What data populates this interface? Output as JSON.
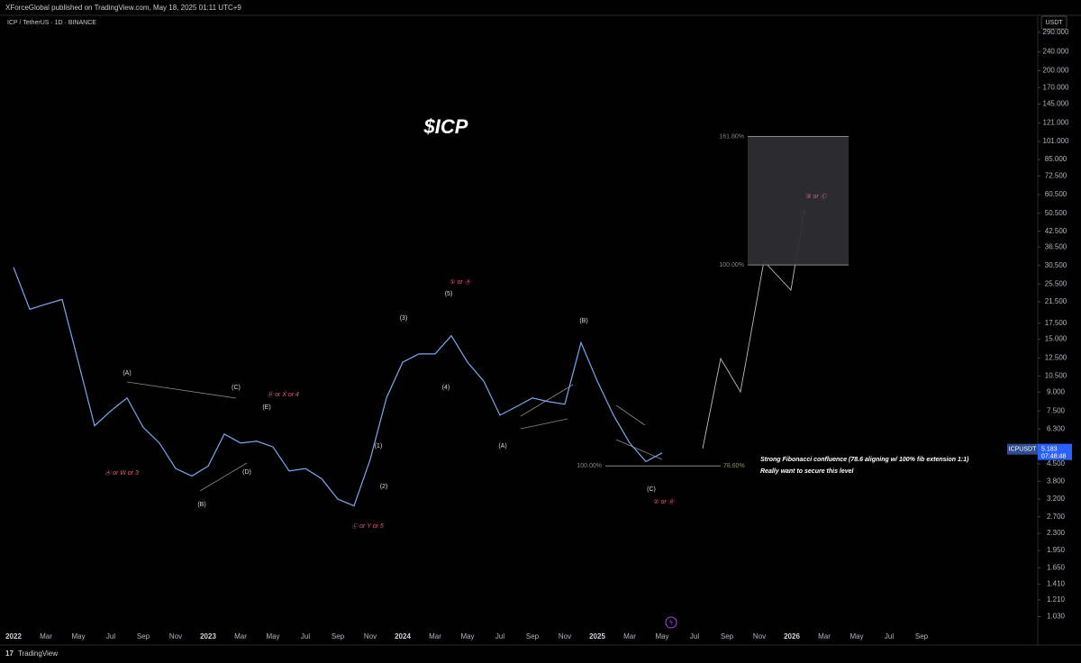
{
  "header": {
    "publisher": "XForceGlobal published on TradingView.com, May 18, 2025 01:11 UTC+9",
    "symbol": "ICP / TetherUS · 1D · BINANCE"
  },
  "footer": {
    "brand": "TradingView"
  },
  "chart_data": {
    "type": "line",
    "title": "$ICP",
    "categories": [
      "2022",
      null,
      "Mar",
      null,
      "May",
      null,
      "Jul",
      null,
      "Sep",
      null,
      "Nov",
      null,
      "2023",
      null,
      "Mar",
      null,
      "May",
      null,
      "Jul",
      null,
      "Sep",
      null,
      "Nov",
      null,
      "2024",
      null,
      "Mar",
      null,
      "May",
      null,
      "Jul",
      null,
      "Sep",
      null,
      "Nov",
      null,
      "2025",
      null,
      "Mar",
      null,
      "May",
      null,
      "Jul",
      null,
      "Sep",
      null,
      "Nov",
      null,
      "2026",
      null,
      "Mar",
      null,
      "May",
      null,
      "Jul",
      null,
      "Sep"
    ],
    "series": [
      {
        "name": "ICPUSDT",
        "color": "#7ea6f0",
        "values": [
          30,
          20,
          21,
          22,
          12,
          6.5,
          7.5,
          8.5,
          6.4,
          5.5,
          4.3,
          4,
          4.4,
          6,
          5.5,
          5.6,
          5.3,
          4.2,
          4.3,
          3.9,
          3.2,
          3.0,
          4.7,
          8.5,
          12,
          13,
          13,
          15.5,
          12,
          10,
          7.2,
          7.8,
          8.5,
          8.2,
          8,
          14.5,
          10,
          7.2,
          5.5,
          4.6,
          5.0,
          null,
          null,
          null,
          null,
          null,
          null,
          null,
          null,
          null,
          null,
          null,
          null,
          null,
          null,
          null,
          null
        ]
      }
    ],
    "ylim": [
      0.9,
      305
    ],
    "log_scale": true,
    "currency": "USDT",
    "yticks": [
      {
        "value": 290,
        "label": "290.000"
      },
      {
        "value": 240,
        "label": "240.000"
      },
      {
        "value": 200,
        "label": "200.000"
      },
      {
        "value": 170,
        "label": "170.000"
      },
      {
        "value": 145,
        "label": "145.000"
      },
      {
        "value": 121,
        "label": "121.000"
      },
      {
        "value": 101,
        "label": "101.000"
      },
      {
        "value": 85,
        "label": "85.000"
      },
      {
        "value": 72.5,
        "label": "72.500"
      },
      {
        "value": 60.5,
        "label": "60.500"
      },
      {
        "value": 50.5,
        "label": "50.500"
      },
      {
        "value": 42.5,
        "label": "42.500"
      },
      {
        "value": 36.5,
        "label": "36.500"
      },
      {
        "value": 30.5,
        "label": "30.500"
      },
      {
        "value": 25.5,
        "label": "25.500"
      },
      {
        "value": 21.5,
        "label": "21.500"
      },
      {
        "value": 17.5,
        "label": "17.500"
      },
      {
        "value": 15,
        "label": "15.000"
      },
      {
        "value": 12.5,
        "label": "12.500"
      },
      {
        "value": 10.5,
        "label": "10.500"
      },
      {
        "value": 9,
        "label": "9.000"
      },
      {
        "value": 7.5,
        "label": "7.500"
      },
      {
        "value": 6.3,
        "label": "6.300"
      },
      {
        "value": 4.5,
        "label": "4.500"
      },
      {
        "value": 3.8,
        "label": "3.800"
      },
      {
        "value": 3.2,
        "label": "3.200"
      },
      {
        "value": 2.7,
        "label": "2.700"
      },
      {
        "value": 2.3,
        "label": "2.300"
      },
      {
        "value": 1.95,
        "label": "1.950"
      },
      {
        "value": 1.65,
        "label": "1.650"
      },
      {
        "value": 1.41,
        "label": "1.410"
      },
      {
        "value": 1.21,
        "label": "1.210"
      },
      {
        "value": 1.03,
        "label": "1.030"
      }
    ],
    "last_price": 5.183,
    "countdown": "07:48:48",
    "fib_box": {
      "top": {
        "value": 106,
        "label": "161.80%"
      },
      "bottom": {
        "value": 30.7,
        "label": "100.00%"
      }
    },
    "fib_line": {
      "value": 4.41,
      "left_label": "100.00%",
      "right_label": "78.60%"
    },
    "annotations": [
      "(A)",
      "(B)",
      "(C)",
      "(D)",
      "(E)",
      "Ⓐ or W or 3",
      "Ⓑ or X or 4",
      "Ⓒ or Y or 5",
      "(1)",
      "(2)",
      "(3)",
      "(4)",
      "(5)",
      "① or Ⓐ",
      "(A)",
      "(B)",
      "(C)",
      "② or Ⓑ",
      "③ or Ⓒ"
    ],
    "notes": [
      "Strong Fibonacci confluence (78.6 aligning w/ 100% fib extension 1:1)",
      "Really want to secure this level"
    ]
  }
}
